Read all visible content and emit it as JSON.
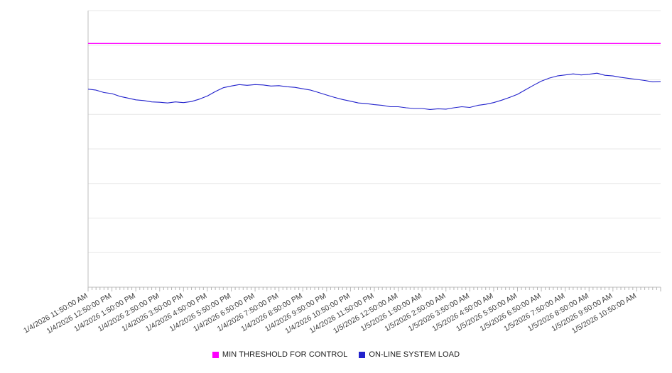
{
  "page": {
    "background_color": "#ffffff"
  },
  "chart_data": {
    "type": "line",
    "title": "",
    "xlabel": "",
    "ylabel": "",
    "y_axis_labels_visible": false,
    "ylim": [
      0,
      8
    ],
    "grid": true,
    "grid_color": "#e7e7e7",
    "axis_color": "#bdbdbd",
    "tick_color": "#b5b5b5",
    "label_color": "#3f3f3f",
    "legend_position": "bottom-center",
    "x_minor_ticks_per_hour": 6,
    "x_tick_labels": [
      "1/4/2026 11:50:00 AM",
      "1/4/2026 12:50:00 PM",
      "1/4/2026 1:50:00 PM",
      "1/4/2026 2:50:00 PM",
      "1/4/2026 3:50:00 PM",
      "1/4/2026 4:50:00 PM",
      "1/4/2026 5:50:00 PM",
      "1/4/2026 6:50:00 PM",
      "1/4/2026 7:50:00 PM",
      "1/4/2026 8:50:00 PM",
      "1/4/2026 9:50:00 PM",
      "1/4/2026 10:50:00 PM",
      "1/4/2026 11:50:00 PM",
      "1/5/2026 12:50:00 AM",
      "1/5/2026 1:50:00 AM",
      "1/5/2026 2:50:00 AM",
      "1/5/2026 3:50:00 AM",
      "1/5/2026 4:50:00 AM",
      "1/5/2026 5:50:00 AM",
      "1/5/2026 6:50:00 AM",
      "1/5/2026 7:50:00 AM",
      "1/5/2026 8:50:00 AM",
      "1/5/2026 9:50:00 AM",
      "1/5/2026 10:50:00 AM"
    ],
    "series": [
      {
        "name": "MIN THRESHOLD FOR CONTROL",
        "color": "#ff00ff",
        "style": "constant",
        "value": 7.05
      },
      {
        "name": "ON-LINE SYSTEM LOAD",
        "color": "#2222cc",
        "style": "line",
        "sample_interval_minutes": 20,
        "values": [
          5.73,
          5.7,
          5.63,
          5.6,
          5.52,
          5.47,
          5.42,
          5.4,
          5.36,
          5.35,
          5.33,
          5.36,
          5.34,
          5.37,
          5.44,
          5.53,
          5.66,
          5.77,
          5.82,
          5.86,
          5.84,
          5.86,
          5.85,
          5.82,
          5.83,
          5.8,
          5.78,
          5.74,
          5.7,
          5.63,
          5.56,
          5.49,
          5.43,
          5.38,
          5.33,
          5.31,
          5.28,
          5.26,
          5.22,
          5.22,
          5.19,
          5.17,
          5.17,
          5.14,
          5.16,
          5.15,
          5.19,
          5.22,
          5.2,
          5.26,
          5.29,
          5.34,
          5.41,
          5.49,
          5.58,
          5.71,
          5.84,
          5.96,
          6.05,
          6.11,
          6.14,
          6.17,
          6.14,
          6.16,
          6.19,
          6.13,
          6.11,
          6.07,
          6.04,
          6.01,
          5.98,
          5.94,
          5.95
        ]
      }
    ]
  }
}
